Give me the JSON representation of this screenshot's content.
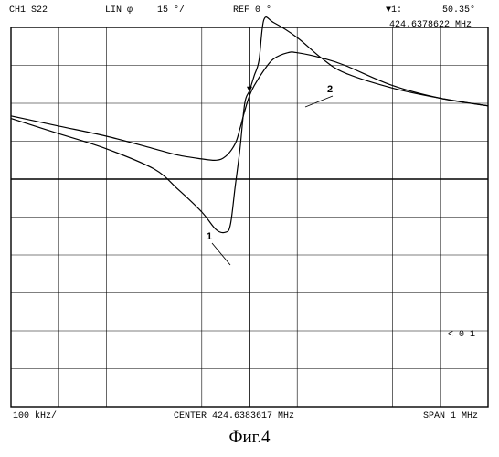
{
  "header": {
    "channel": "CH1 S22",
    "format": "LIN φ",
    "scale": "15 °/",
    "reference": "REF 0 °",
    "marker_label": "▼1:",
    "marker_value": "50.35°",
    "marker_freq": "424.6378622 MHz"
  },
  "footer": {
    "per_div": "100 kHz/",
    "center": "CENTER 424.6383617 MHz",
    "span": "SPAN 1 MHz"
  },
  "caption": "Фиг.4",
  "ref_marker": "< 0 1",
  "chart_data": {
    "type": "line",
    "x_unit": "MHz offset from center",
    "xlim": [
      -0.5,
      0.5
    ],
    "ylim": [
      -90,
      60
    ],
    "ref_level": 0,
    "grid": true,
    "series": [
      {
        "name": "1",
        "x": [
          -0.5,
          -0.4,
          -0.3,
          -0.2,
          -0.15,
          -0.1,
          -0.07,
          -0.05,
          -0.03,
          -0.02,
          -0.01,
          0.0,
          0.01,
          0.03,
          0.05,
          0.08,
          0.1,
          0.15,
          0.2,
          0.3,
          0.4,
          0.5
        ],
        "y": [
          25,
          21,
          17,
          12,
          9.5,
          8,
          7.5,
          9,
          14,
          20,
          27,
          33,
          37,
          43,
          47.5,
          50,
          50,
          48,
          45,
          37,
          32,
          29
        ]
      },
      {
        "name": "2",
        "x": [
          -0.5,
          -0.4,
          -0.3,
          -0.2,
          -0.15,
          -0.1,
          -0.07,
          -0.05,
          -0.04,
          -0.03,
          -0.02,
          -0.01,
          0.0,
          0.01,
          0.02,
          0.03,
          0.05,
          0.1,
          0.15,
          0.2,
          0.3,
          0.4,
          0.5
        ],
        "y": [
          24,
          18,
          12,
          4,
          -4,
          -13,
          -20,
          -21,
          -18,
          -3,
          12,
          30,
          35,
          41,
          47,
          63,
          62,
          56,
          48,
          42,
          36,
          32,
          29
        ]
      }
    ],
    "annotations": [
      {
        "text": "1",
        "series": "1"
      },
      {
        "text": "2",
        "series": "2"
      }
    ]
  }
}
